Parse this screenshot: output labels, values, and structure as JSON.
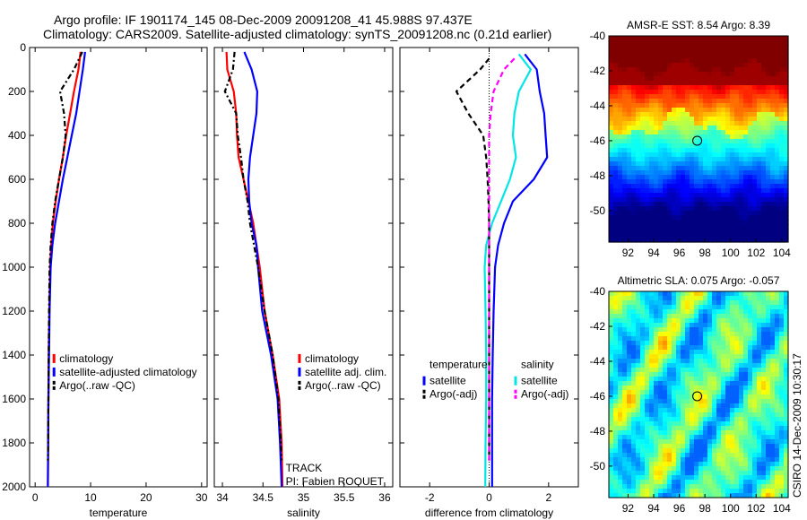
{
  "title_line1": "Argo profile: IF 1901174_145 08-Dec-2009 20091208_41 45.988S 97.437E",
  "title_line2": "Climatology: CARS2009. Satellite-adjusted climatology: synTS_20091208.nc (0.21d earlier)",
  "credit": "CSIRO 14-Dec-2009 10:30:17",
  "colors": {
    "climatology": "#ff0000",
    "satellite": "#0000ff",
    "argo": "#000000",
    "sal_satellite": "#00e5e5",
    "sal_argo": "#ff00ff"
  },
  "chart_data": [
    {
      "id": "temperature",
      "type": "line",
      "xlabel": "temperature",
      "xlim": [
        -1,
        31
      ],
      "ylim": [
        2000,
        0
      ],
      "xticks": [
        0,
        10,
        20,
        30
      ],
      "yticks": [
        0,
        200,
        400,
        600,
        800,
        1000,
        1200,
        1400,
        1600,
        1800,
        2000
      ],
      "legend": [
        "climatology",
        "satellite-adjusted climatology",
        "Argo(..raw -QC)"
      ],
      "series": [
        {
          "name": "climatology",
          "color": "#ff0000",
          "dash": "",
          "x": [
            8.2,
            7.8,
            7.0,
            6.3,
            5.6,
            5.0,
            4.3,
            3.7,
            3.2,
            2.9,
            2.7,
            2.55,
            2.45,
            2.4,
            2.35,
            2.3
          ],
          "y": [
            20,
            100,
            200,
            300,
            400,
            500,
            600,
            700,
            800,
            900,
            1000,
            1200,
            1400,
            1600,
            1800,
            2000
          ]
        },
        {
          "name": "satellite-adjusted climatology",
          "color": "#0000ff",
          "dash": "",
          "x": [
            9.0,
            8.6,
            8.0,
            7.4,
            6.6,
            5.8,
            5.0,
            4.3,
            3.6,
            3.1,
            2.8,
            2.6,
            2.5,
            2.4,
            2.35,
            2.3
          ],
          "y": [
            20,
            100,
            200,
            300,
            400,
            500,
            600,
            700,
            800,
            900,
            1000,
            1200,
            1400,
            1600,
            1800,
            2000
          ]
        },
        {
          "name": "Argo(..raw -QC)",
          "color": "#000000",
          "dash": "6,3,2,3",
          "x": [
            8.5,
            7.0,
            4.5,
            5.2,
            5.5,
            5.0,
            4.3,
            3.6,
            3.1,
            2.8,
            2.6,
            2.5,
            2.45,
            2.4,
            2.35,
            2.3
          ],
          "y": [
            20,
            100,
            200,
            300,
            400,
            500,
            600,
            700,
            800,
            900,
            1000,
            1200,
            1400,
            1600,
            1800,
            1880
          ]
        }
      ]
    },
    {
      "id": "salinity",
      "type": "line",
      "xlabel": "salinity",
      "xlim": [
        33.9,
        36.1
      ],
      "ylim": [
        2000,
        0
      ],
      "xticks": [
        34,
        34.5,
        35,
        35.5,
        36
      ],
      "yticks": [
        0,
        200,
        400,
        600,
        800,
        1000,
        1200,
        1400,
        1600,
        1800,
        2000
      ],
      "legend": [
        "climatology",
        "satellite adj. clim.",
        "Argo(..raw -QC)"
      ],
      "annotations": [
        "TRACK",
        "PI: Fabien ROQUET"
      ],
      "series": [
        {
          "name": "climatology",
          "color": "#ff0000",
          "dash": "",
          "x": [
            34.05,
            34.06,
            34.14,
            34.17,
            34.18,
            34.2,
            34.26,
            34.32,
            34.38,
            34.42,
            34.46,
            34.52,
            34.62,
            34.7,
            34.73,
            34.74
          ],
          "y": [
            20,
            100,
            200,
            300,
            400,
            500,
            600,
            700,
            800,
            900,
            1000,
            1200,
            1400,
            1600,
            1800,
            2000
          ]
        },
        {
          "name": "satellite adj. clim.",
          "color": "#0000ff",
          "dash": "",
          "x": [
            34.27,
            34.36,
            34.43,
            34.42,
            34.38,
            34.34,
            34.32,
            34.33,
            34.36,
            34.42,
            34.44,
            34.49,
            34.6,
            34.68,
            34.71,
            34.73
          ],
          "y": [
            20,
            100,
            200,
            300,
            400,
            500,
            600,
            700,
            800,
            900,
            1000,
            1200,
            1400,
            1600,
            1800,
            2000
          ]
        },
        {
          "name": "Argo(..raw -QC)",
          "color": "#000000",
          "dash": "6,3,2,3",
          "x": [
            34.15,
            34.13,
            34.03,
            34.17,
            34.19,
            34.23,
            34.26,
            34.31,
            34.34,
            34.39,
            34.44,
            34.52,
            34.62,
            34.69,
            34.72,
            34.73
          ],
          "y": [
            20,
            100,
            200,
            300,
            400,
            500,
            600,
            700,
            800,
            900,
            1000,
            1200,
            1400,
            1600,
            1800,
            1880
          ]
        }
      ]
    },
    {
      "id": "difference",
      "type": "line",
      "xlabel": "difference from climatology",
      "xlim": [
        -3,
        3
      ],
      "ylim": [
        2000,
        0
      ],
      "xticks": [
        -2,
        0,
        2
      ],
      "yticks": [
        0,
        200,
        400,
        600,
        800,
        1000,
        1200,
        1400,
        1600,
        1800,
        2000
      ],
      "legend_headers": [
        "temperature",
        "salinity"
      ],
      "legend_temperature": [
        "satellite",
        "Argo(-adj)"
      ],
      "legend_salinity": [
        "satellite",
        "Argo(-adj)"
      ],
      "series": [
        {
          "name": "temperature satellite",
          "color": "#0000ff",
          "dash": "",
          "x": [
            1.2,
            1.6,
            1.7,
            1.85,
            1.9,
            1.95,
            1.5,
            0.8,
            0.5,
            0.3,
            0.2,
            0.15,
            0.12,
            0.1,
            0.1,
            0.1
          ],
          "y": [
            30,
            100,
            200,
            300,
            400,
            500,
            600,
            700,
            800,
            900,
            1000,
            1200,
            1400,
            1600,
            1800,
            2000
          ]
        },
        {
          "name": "salinity satellite",
          "color": "#00e5e5",
          "dash": "",
          "x": [
            1.0,
            1.4,
            1.0,
            0.85,
            0.8,
            0.9,
            0.7,
            0.4,
            0.1,
            -0.1,
            -0.15,
            -0.12,
            -0.1,
            -0.1,
            -0.12,
            -0.13
          ],
          "y": [
            30,
            100,
            200,
            300,
            400,
            500,
            600,
            700,
            800,
            900,
            1000,
            1200,
            1400,
            1600,
            1800,
            2000
          ]
        },
        {
          "name": "temperature Argo(-adj)",
          "color": "#000000",
          "dash": "6,4",
          "x": [
            0.0,
            -0.3,
            -1.1,
            -0.7,
            -0.2,
            -0.1,
            -0.05,
            -0.02,
            0.0,
            0.0,
            0.0,
            0.0,
            0.0,
            0.0,
            0.0,
            0.0
          ],
          "y": [
            50,
            100,
            200,
            300,
            400,
            500,
            600,
            700,
            800,
            900,
            1000,
            1200,
            1400,
            1600,
            1800,
            1880
          ]
        },
        {
          "name": "salinity Argo(-adj)",
          "color": "#ff00ff",
          "dash": "6,4",
          "x": [
            0.85,
            0.5,
            0.15,
            0.05,
            0.0,
            0.0,
            0.0,
            0.0,
            0.0,
            0.0,
            0.0,
            0.0,
            0.0,
            0.0,
            0.0,
            0.0
          ],
          "y": [
            50,
            100,
            200,
            300,
            400,
            500,
            600,
            700,
            800,
            900,
            1000,
            1200,
            1400,
            1600,
            1800,
            1880
          ]
        }
      ]
    },
    {
      "id": "sst_map",
      "type": "heatmap",
      "title": "AMSR-E SST: 8.54 Argo: 8.39",
      "xlim": [
        90.5,
        104.5
      ],
      "ylim": [
        -51.8,
        -40
      ],
      "xticks": [
        92,
        94,
        96,
        98,
        100,
        102,
        104
      ],
      "yticks": [
        -40,
        -42,
        -44,
        -46,
        -48,
        -50
      ],
      "marker": {
        "lon": 97.4,
        "lat": -46.0
      }
    },
    {
      "id": "sla_map",
      "type": "heatmap",
      "title": "Altimetric SLA: 0.075 Argo: -0.057",
      "xlim": [
        90.5,
        104.5
      ],
      "ylim": [
        -51.8,
        -40
      ],
      "xticks": [
        92,
        94,
        96,
        98,
        100,
        102,
        104
      ],
      "yticks": [
        -40,
        -42,
        -44,
        -46,
        -48,
        -50
      ],
      "marker": {
        "lon": 97.4,
        "lat": -46.0
      }
    }
  ]
}
